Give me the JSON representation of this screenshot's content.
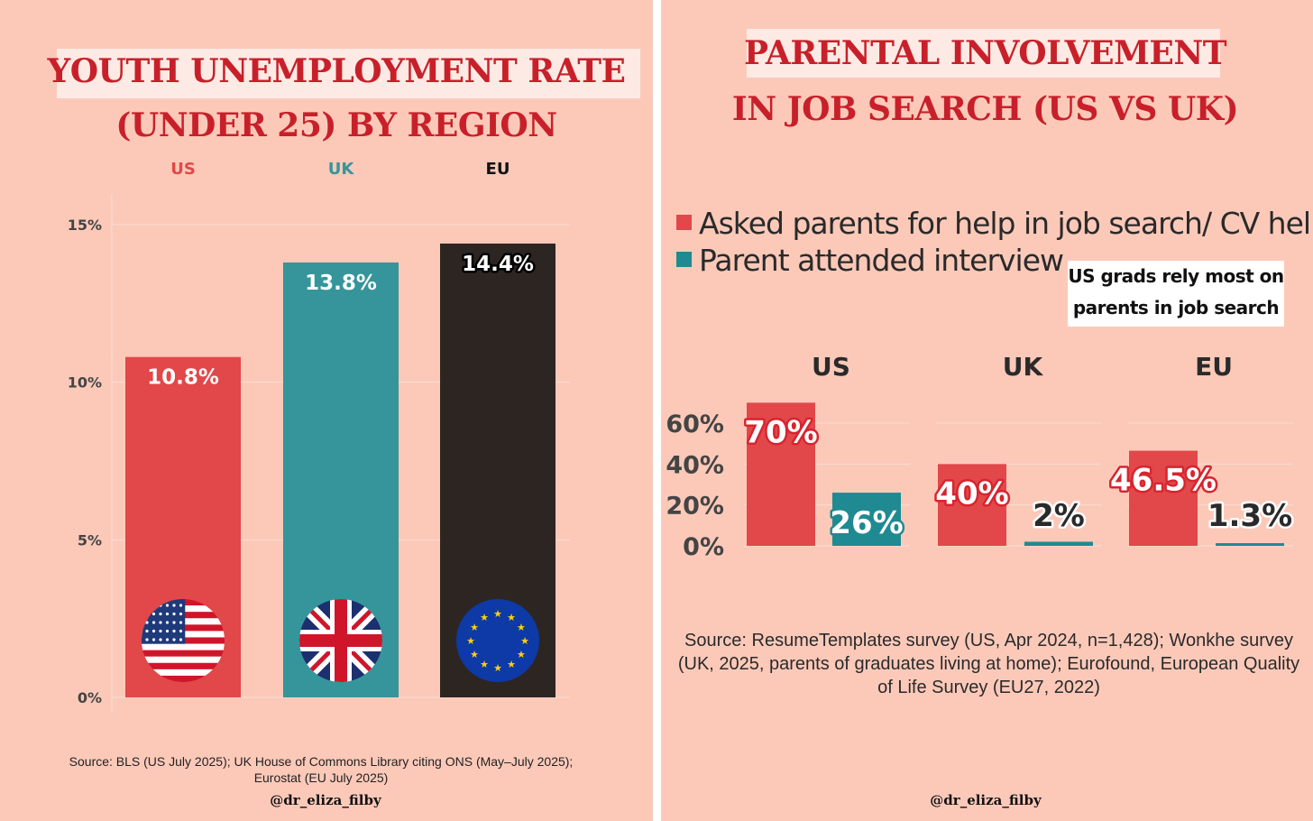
{
  "left_chart": {
    "title_line1": "YOUTH UNEMPLOYMENT RATE",
    "title_line2": "(UNDER 25) BY REGION",
    "source_line1": "Source: BLS (US July 2025); UK House of Commons Library citing ONS (May–July 2025);",
    "source_line2": "Eurostat (EU July 2025)",
    "handle": "@dr_eliza_filby"
  },
  "right_chart": {
    "title_line1": "PARENTAL INVOLVEMENT",
    "title_line2": "IN JOB SEARCH (US VS UK)",
    "note_line1": "US grads rely most on",
    "note_line2": "parents in job search",
    "source_line1": "Source: ResumeTemplates survey (US, Apr 2024, n=1,428); Wonkhe survey",
    "source_line2": "(UK, 2025, parents of graduates living at home); Eurofound, European Quality",
    "source_line3": "of Life Survey (EU27, 2022)",
    "handle": "@dr_eliza_filby"
  },
  "colors": {
    "background": "#fcc9b9",
    "title_red": "#c8202a",
    "us_red": "#e2474a",
    "uk_teal": "#35959b",
    "eu_dark": "#2d2522",
    "help_red": "#e2474a",
    "interview_teal": "#1f8a91"
  },
  "chart_data": [
    {
      "type": "bar",
      "title": "YOUTH UNEMPLOYMENT RATE (UNDER 25) BY REGION",
      "categories": [
        "US",
        "UK",
        "EU"
      ],
      "values": [
        10.8,
        13.8,
        14.4
      ],
      "value_labels": [
        "10.8%",
        "13.8%",
        "14.4%"
      ],
      "category_colors": [
        "#e2474a",
        "#35959b",
        "#2d2522"
      ],
      "category_icons": [
        "us-flag-icon",
        "uk-flag-icon",
        "eu-flag-icon"
      ],
      "ylabel": "",
      "xlabel": "",
      "ylim": [
        0,
        15
      ],
      "yticks": [
        0,
        5,
        10,
        15
      ],
      "ytick_labels": [
        "0%",
        "5%",
        "10%",
        "15%"
      ],
      "grid": true
    },
    {
      "type": "bar",
      "title": "PARENTAL INVOLVEMENT IN JOB SEARCH (US VS UK)",
      "categories": [
        "US",
        "UK",
        "EU"
      ],
      "series": [
        {
          "name": "Asked parents for help in job search/ CV help",
          "values": [
            70,
            40,
            46.5
          ],
          "labels": [
            "70%",
            "40%",
            "46.5%"
          ],
          "color": "#e2474a"
        },
        {
          "name": "Parent attended interview",
          "values": [
            26,
            2,
            1.3
          ],
          "labels": [
            "26%",
            "2%",
            "1.3%"
          ],
          "color": "#1f8a91"
        }
      ],
      "ylim": [
        0,
        70
      ],
      "yticks": [
        0,
        20,
        40,
        60
      ],
      "ytick_labels": [
        "0%",
        "20%",
        "40%",
        "60%"
      ],
      "legend": "top-left",
      "grid": true
    }
  ]
}
